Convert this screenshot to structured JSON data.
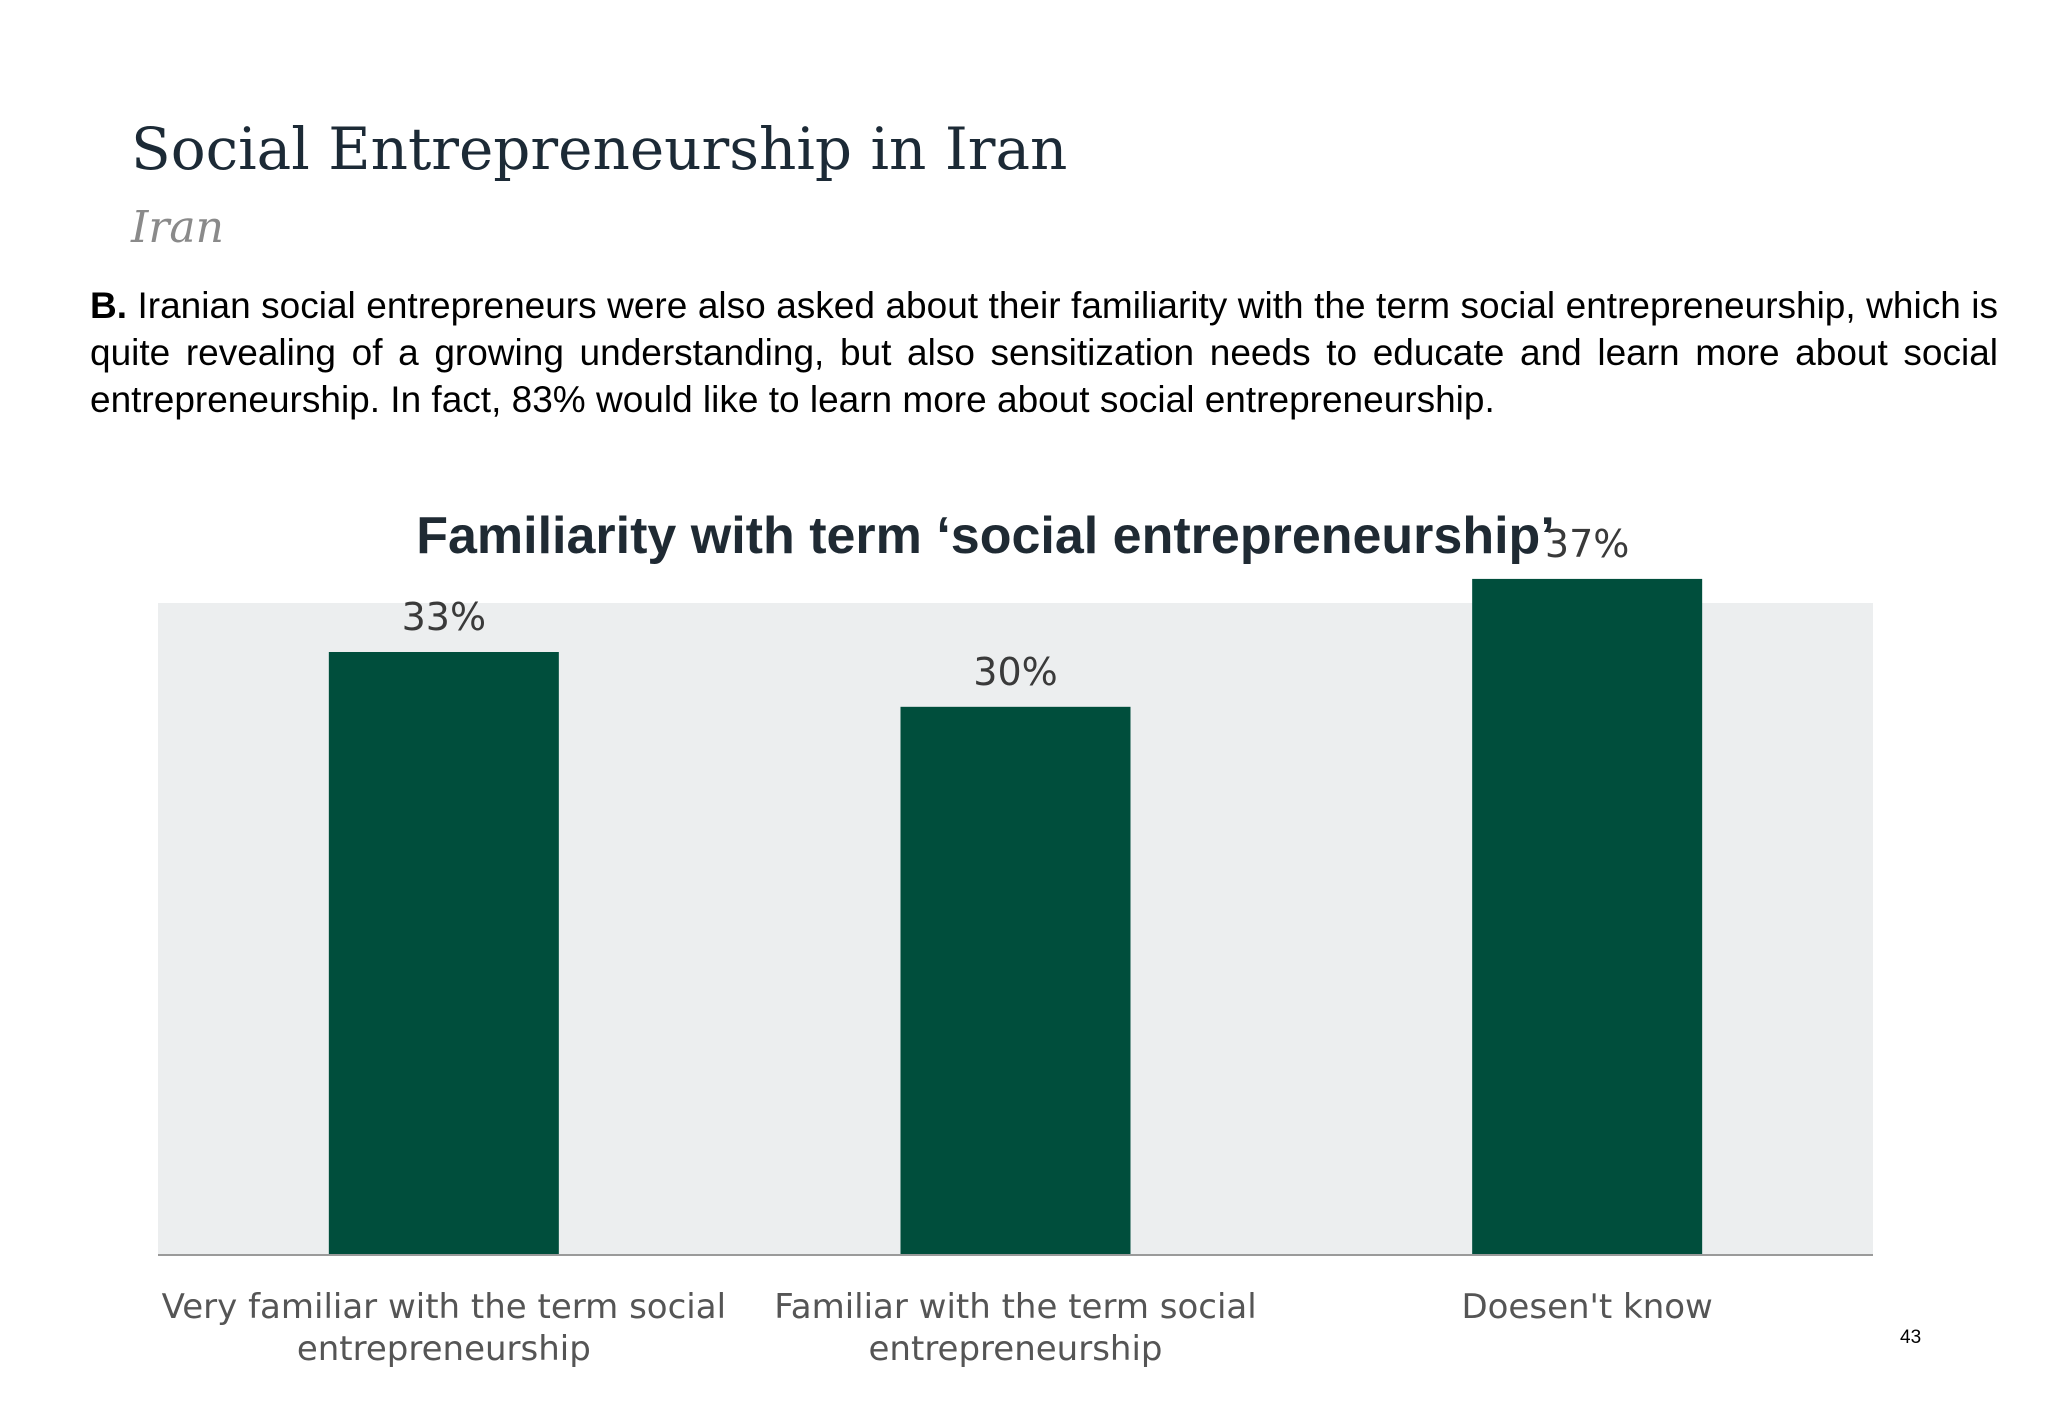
{
  "page": {
    "title": "Social Entrepreneurship in Iran",
    "subtitle": "Iran",
    "body_lead": "B.",
    "body_text": " Iranian social entrepreneurs were also asked about their familiarity with the term social entrepreneurship, which is quite revealing of a growing understanding, but also sensitization needs to educate and learn more about social entrepreneurship. In fact, 83% would like to learn more about social entrepreneurship.",
    "page_number": "43"
  },
  "chart_data": {
    "type": "bar",
    "title": "Familiarity with term ‘social entrepreneurship’",
    "categories": [
      [
        "Very familiar with the term social",
        "entrepreneurship"
      ],
      [
        "Familiar with the term social",
        "entrepreneurship"
      ],
      [
        "Doesen't know"
      ]
    ],
    "values": [
      33,
      30,
      37
    ],
    "value_labels": [
      "33%",
      "30%",
      "37%"
    ],
    "ylim": [
      0,
      40
    ],
    "grid": false,
    "legend": "none",
    "colors": {
      "bar": "#004e3c",
      "plot_background": "#eceeef",
      "axis_line": "#9a9a9a",
      "text": "#3a3a3a",
      "title": "#1f2a33"
    }
  }
}
